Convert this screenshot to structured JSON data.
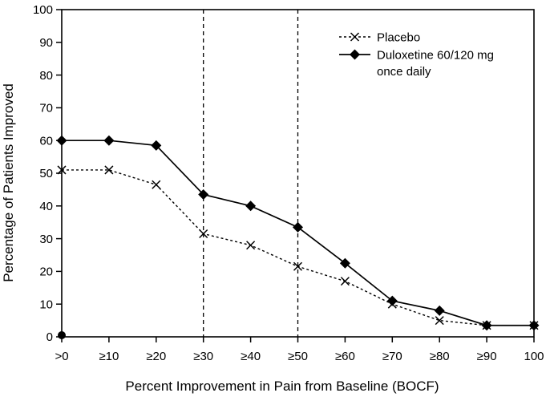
{
  "chart_data": {
    "type": "line",
    "title": "",
    "xlabel": "Percent Improvement in Pain from Baseline (BOCF)",
    "ylabel": "Percentage of Patients Improved",
    "categories": [
      ">0",
      "≥10",
      "≥20",
      "≥30",
      "≥40",
      "≥50",
      "≥60",
      "≥70",
      "≥80",
      "≥90",
      "100"
    ],
    "ylim": [
      0,
      100
    ],
    "yticks": [
      0,
      10,
      20,
      30,
      40,
      50,
      60,
      70,
      80,
      90,
      100
    ],
    "grid": false,
    "legend_position": "top-right-inside",
    "line_color": "#000000",
    "background_color": "#ffffff",
    "series": [
      {
        "name": "Placebo",
        "legend_lines": [
          "Placebo"
        ],
        "marker": "x",
        "line_style": "dashed",
        "color": "#000000",
        "values": [
          51,
          51,
          46.5,
          31.5,
          28,
          21.5,
          17,
          10,
          5,
          3.5,
          3.5
        ]
      },
      {
        "name": "Duloxetine 60/120 mg once daily",
        "legend_lines": [
          "Duloxetine 60/120 mg",
          "once daily"
        ],
        "marker": "diamond",
        "line_style": "solid",
        "color": "#000000",
        "values": [
          60,
          60,
          58.5,
          43.5,
          40,
          33.5,
          22.5,
          11,
          8,
          3.5,
          3.5
        ]
      }
    ],
    "reference_lines": [
      {
        "axis": "x",
        "at_category": "≥30",
        "style": "dashed"
      },
      {
        "axis": "x",
        "at_category": "≥50",
        "style": "dashed"
      }
    ],
    "annotations": {
      "origin_dot": true
    }
  }
}
